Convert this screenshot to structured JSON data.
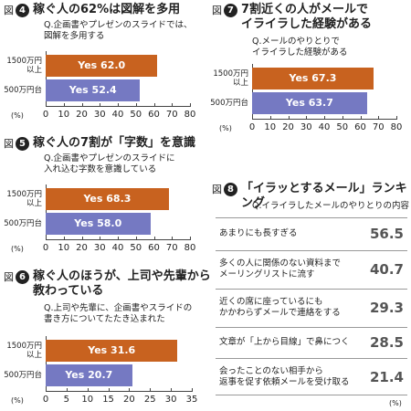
{
  "chart_data": [
    {
      "type": "hbar",
      "figure_label": "図",
      "number": 4,
      "title": "稼ぐ人の62%は図解を多用",
      "subtitle": "Q.企画書やプレゼンのスライドでは、\n図解を多用する",
      "categories": [
        "1500万円\n以上",
        "500万円台"
      ],
      "values": [
        62.0,
        52.4
      ],
      "value_labels": [
        "Yes 62.0",
        "Yes 52.4"
      ],
      "colors": [
        "#c8621f",
        "#7579c2"
      ],
      "xlim": [
        0,
        80
      ],
      "xticks": [
        0,
        10,
        20,
        30,
        40,
        50,
        60,
        70,
        80
      ],
      "unit_label": "(%)"
    },
    {
      "type": "hbar",
      "figure_label": "図",
      "number": 5,
      "title": "稼ぐ人の7割が「字数」を意識",
      "subtitle": "Q.企画書やプレゼンのスライドに\n入れ込む字数を意識している",
      "categories": [
        "1500万円\n以上",
        "500万円台"
      ],
      "values": [
        68.3,
        58.0
      ],
      "value_labels": [
        "Yes 68.3",
        "Yes 58.0"
      ],
      "colors": [
        "#c8621f",
        "#7579c2"
      ],
      "xlim": [
        0,
        80
      ],
      "xticks": [
        0,
        10,
        20,
        30,
        40,
        50,
        60,
        70,
        80
      ],
      "unit_label": "(%)"
    },
    {
      "type": "hbar",
      "figure_label": "図",
      "number": 6,
      "title": "稼ぐ人のほうが、上司や先輩から\n教わっている",
      "subtitle": "Q.上司や先輩に、企画書やスライドの\n書き方についてたたき込まれた",
      "categories": [
        "1500万円\n以上",
        "500万円台"
      ],
      "values": [
        31.6,
        20.7
      ],
      "value_labels": [
        "Yes 31.6",
        "Yes 20.7"
      ],
      "colors": [
        "#c8621f",
        "#7579c2"
      ],
      "xlim": [
        0,
        35
      ],
      "xticks": [
        0,
        5,
        10,
        15,
        20,
        25,
        30,
        35
      ],
      "unit_label": "(%)"
    },
    {
      "type": "hbar",
      "figure_label": "図",
      "number": 7,
      "title": "7割近くの人がメールで\nイライラした経験がある",
      "subtitle": "Q.メールのやりとりで\nイライラした経験がある",
      "categories": [
        "1500万円\n以上",
        "500万円台"
      ],
      "values": [
        67.3,
        63.7
      ],
      "value_labels": [
        "Yes 67.3",
        "Yes 63.7"
      ],
      "colors": [
        "#c8621f",
        "#7579c2"
      ],
      "xlim": [
        0,
        80
      ],
      "xticks": [
        0,
        10,
        20,
        30,
        40,
        50,
        60,
        70,
        80
      ],
      "unit_label": "(%)"
    },
    {
      "type": "ranking",
      "figure_label": "図",
      "number": 8,
      "title": "「イラッとするメール」ランキング",
      "subtitle": "Q.イライラしたメールのやりとりの内容",
      "categories": [
        "あまりにも長すぎる",
        "多くの人に関係のない資料まで\nメーリングリストに流す",
        "近くの席に座っているにも\nかかわらずメールで連絡をする",
        "文章が「上から目線」で鼻につく",
        "会ったことのない相手から\n返事を促す依頼メールを受け取る"
      ],
      "values": [
        56.5,
        40.7,
        29.3,
        28.5,
        21.4
      ],
      "unit_label": "(%)"
    }
  ]
}
